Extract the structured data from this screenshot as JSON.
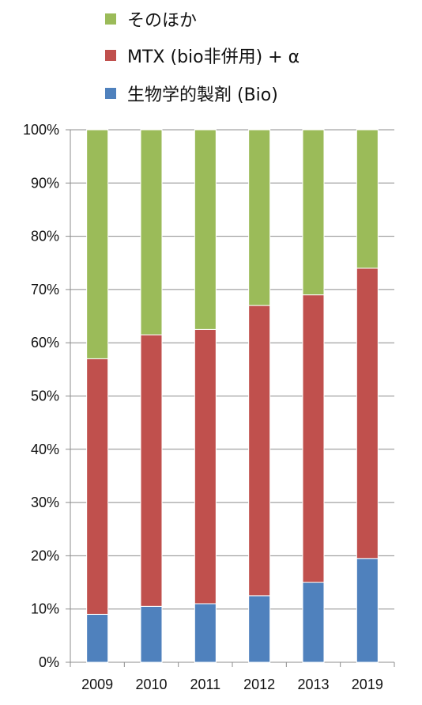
{
  "chart_data": {
    "type": "bar",
    "stacked": true,
    "normalized_percent": true,
    "categories": [
      "2009",
      "2010",
      "2011",
      "2012",
      "2013",
      "2019"
    ],
    "series": [
      {
        "name": "生物学的製剤 (Bio)",
        "color": "#4f81bd",
        "values": [
          9,
          10.5,
          11,
          12.5,
          15,
          19.5
        ]
      },
      {
        "name": "MTX (bio非併用) + α",
        "color": "#c0504d",
        "values": [
          48,
          51,
          51.5,
          54.5,
          54,
          54.5
        ]
      },
      {
        "name": "そのほか",
        "color": "#9bbb59",
        "values": [
          43,
          38.5,
          37.5,
          33,
          31,
          26
        ]
      }
    ],
    "legend_order": [
      2,
      1,
      0
    ],
    "legend_position": "top",
    "ylim": [
      0,
      100
    ],
    "yticks": [
      "0%",
      "10%",
      "20%",
      "30%",
      "40%",
      "50%",
      "60%",
      "70%",
      "80%",
      "90%",
      "100%"
    ],
    "grid": true,
    "title": "",
    "xlabel": "",
    "ylabel": ""
  }
}
